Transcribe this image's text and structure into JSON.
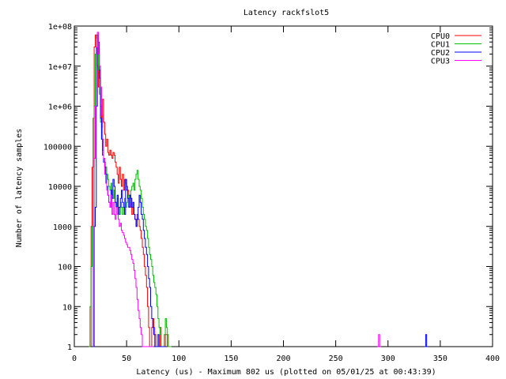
{
  "chart_data": {
    "type": "line",
    "title": "Latency rackfslot5",
    "xlabel": "Latency (us) - Maximum 802 us (plotted on 05/01/25 at 00:43:39)",
    "ylabel": "Number of latency samples",
    "xlim": [
      0,
      400
    ],
    "ylim": [
      1,
      100000000
    ],
    "y_scale": "log",
    "x_ticks": [
      0,
      50,
      100,
      150,
      200,
      250,
      300,
      350,
      400
    ],
    "y_ticks": [
      {
        "value": 1,
        "label": "1"
      },
      {
        "value": 10,
        "label": "10"
      },
      {
        "value": 100,
        "label": "100"
      },
      {
        "value": 1000,
        "label": "1000"
      },
      {
        "value": 10000,
        "label": "10000"
      },
      {
        "value": 100000,
        "label": "100000"
      },
      {
        "value": 1000000,
        "label": "1e+06"
      },
      {
        "value": 10000000,
        "label": "1e+07"
      },
      {
        "value": 100000000,
        "label": "1e+08"
      }
    ],
    "grid": false,
    "legend_position": "top-right",
    "series": [
      {
        "name": "CPU0",
        "color": "#ff0000",
        "x": [
          16,
          17,
          18,
          19,
          20,
          21,
          22,
          23,
          24,
          25,
          26,
          27,
          28,
          29,
          30,
          31,
          32,
          33,
          34,
          35,
          36,
          37,
          38,
          39,
          40,
          41,
          42,
          43,
          44,
          45,
          46,
          47,
          48,
          49,
          50,
          51,
          52,
          53,
          54,
          55,
          56,
          57,
          58,
          59,
          60,
          61,
          62,
          63,
          64,
          65,
          66,
          67,
          68,
          69,
          70,
          71,
          72,
          73,
          74,
          75,
          76,
          77,
          78,
          79,
          80,
          81,
          82,
          83,
          84,
          85,
          86,
          87,
          88,
          89,
          90
        ],
        "y": [
          1000,
          30000,
          500000,
          30000000,
          60000000,
          50000000,
          10000000,
          3000000,
          8000000,
          1000000,
          300000,
          1500000,
          400000,
          200000,
          100000,
          150000,
          70000,
          60000,
          80000,
          60000,
          50000,
          70000,
          60000,
          40000,
          30000,
          20000,
          12000,
          30000,
          15000,
          10000,
          20000,
          8000,
          15000,
          12000,
          10000,
          8000,
          6000,
          3000,
          5000,
          2000,
          3000,
          2000,
          1500,
          1000,
          2000,
          1500,
          1000,
          800,
          500,
          300,
          200,
          100,
          60,
          30,
          10,
          3,
          1,
          1,
          3,
          5,
          3,
          2,
          1,
          1,
          1,
          1,
          3,
          1,
          1,
          1,
          1,
          2,
          2,
          1,
          1
        ]
      },
      {
        "name": "CPU1",
        "color": "#00c000",
        "x": [
          14,
          15,
          16,
          17,
          18,
          19,
          20,
          21,
          22,
          23,
          24,
          25,
          26,
          27,
          28,
          29,
          30,
          31,
          32,
          33,
          34,
          35,
          36,
          37,
          38,
          39,
          40,
          41,
          42,
          43,
          44,
          45,
          46,
          47,
          48,
          49,
          50,
          51,
          52,
          53,
          54,
          55,
          56,
          57,
          58,
          59,
          60,
          61,
          62,
          63,
          64,
          65,
          66,
          67,
          68,
          69,
          70,
          71,
          72,
          73,
          74,
          75,
          76,
          77,
          78,
          79,
          80,
          81,
          82,
          83,
          84,
          85,
          86,
          87,
          88,
          89,
          90,
          91,
          92
        ],
        "y": [
          1,
          10,
          100,
          1000,
          30000,
          1000000,
          20000000,
          60000000,
          40000000,
          8000000,
          2000000,
          400000,
          150000,
          80000,
          50000,
          40000,
          30000,
          20000,
          15000,
          10000,
          8000,
          12000,
          6000,
          5000,
          8000,
          4000,
          3000,
          5000,
          3000,
          2000,
          4000,
          3000,
          2000,
          3000,
          5000,
          3000,
          4000,
          6000,
          5000,
          4000,
          8000,
          10000,
          12000,
          8000,
          15000,
          20000,
          25000,
          15000,
          10000,
          8000,
          5000,
          3000,
          2000,
          1500,
          1000,
          800,
          500,
          300,
          200,
          150,
          100,
          60,
          40,
          30,
          20,
          10,
          5,
          3,
          2,
          1,
          1,
          1,
          2,
          5,
          3,
          2,
          1,
          1,
          1
        ]
      },
      {
        "name": "CPU2",
        "color": "#0000ff",
        "x": [
          18,
          19,
          20,
          21,
          22,
          23,
          24,
          25,
          26,
          27,
          28,
          29,
          30,
          31,
          32,
          33,
          34,
          35,
          36,
          37,
          38,
          39,
          40,
          41,
          42,
          43,
          44,
          45,
          46,
          47,
          48,
          49,
          50,
          51,
          52,
          53,
          54,
          55,
          56,
          57,
          58,
          59,
          60,
          61,
          62,
          63,
          64,
          65,
          66,
          67,
          68,
          69,
          70,
          71,
          72,
          73,
          74,
          75,
          76,
          77,
          78,
          79,
          80,
          81,
          82,
          83,
          84,
          85,
          86,
          87,
          335,
          336,
          337
        ],
        "y": [
          1,
          1000,
          3000,
          1000000,
          60000000,
          40000000,
          5000000,
          500000,
          150000,
          60000,
          40000,
          30000,
          20000,
          10000,
          6000,
          4000,
          3000,
          8000,
          5000,
          15000,
          10000,
          4000,
          3000,
          6000,
          2000,
          3000,
          5000,
          8000,
          4000,
          3000,
          2000,
          15000,
          8000,
          5000,
          3000,
          6000,
          5000,
          3000,
          4000,
          2000,
          1500,
          1000,
          1500,
          3000,
          6000,
          4000,
          2000,
          1500,
          800,
          500,
          300,
          200,
          100,
          50,
          30,
          10,
          5,
          3,
          2,
          1,
          1,
          1,
          2,
          1,
          1,
          1,
          1,
          1,
          1,
          1,
          1,
          2,
          1
        ]
      },
      {
        "name": "CPU3",
        "color": "#ff00ff",
        "x": [
          18,
          19,
          20,
          21,
          22,
          23,
          24,
          25,
          26,
          27,
          28,
          29,
          30,
          31,
          32,
          33,
          34,
          35,
          36,
          37,
          38,
          39,
          40,
          41,
          42,
          43,
          44,
          45,
          46,
          47,
          48,
          49,
          50,
          51,
          52,
          53,
          54,
          55,
          56,
          57,
          58,
          59,
          60,
          61,
          62,
          63,
          64,
          65,
          66,
          67,
          68,
          69,
          70,
          71,
          72,
          73,
          74,
          75,
          290,
          291,
          292
        ],
        "y": [
          1000,
          50000,
          1000000,
          30000000,
          70000000,
          20000000,
          10000000,
          3000000,
          600000,
          150000,
          50000,
          20000,
          12000,
          8000,
          6000,
          4000,
          3000,
          6000,
          2000,
          4000,
          2000,
          1500,
          3000,
          2000,
          1500,
          1000,
          1200,
          800,
          700,
          600,
          500,
          400,
          350,
          300,
          300,
          250,
          200,
          150,
          120,
          80,
          50,
          30,
          15,
          8,
          5,
          3,
          2,
          1,
          1,
          1,
          1,
          1,
          1,
          1,
          1,
          1,
          1,
          1,
          1,
          2,
          1
        ]
      }
    ]
  }
}
